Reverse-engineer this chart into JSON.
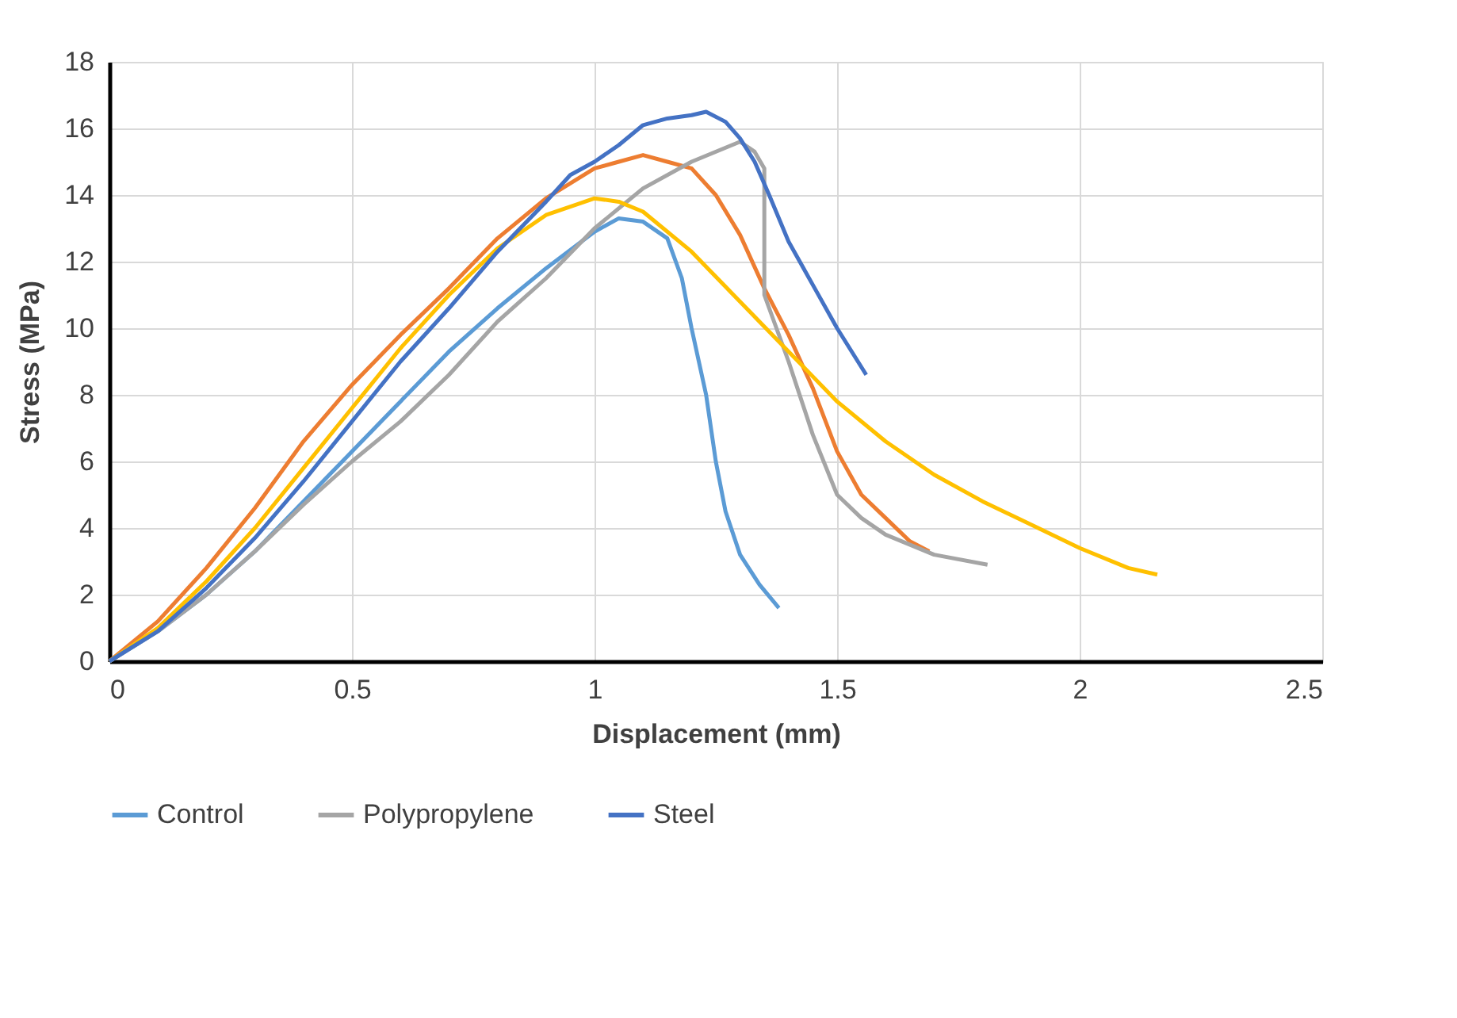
{
  "chart_data": {
    "type": "line",
    "xlabel": "Displacement (mm)",
    "ylabel": "Stress (MPa)",
    "xlim": [
      0,
      2.5
    ],
    "xticks": [
      0,
      0.5,
      1,
      1.5,
      2,
      2.5
    ],
    "ylim": [
      0,
      18
    ],
    "yticks": [
      0,
      2,
      4,
      6,
      8,
      10,
      12,
      14,
      16,
      18
    ],
    "grid": true,
    "legend": "bottom",
    "marker": "none",
    "line_style": "solid",
    "series": [
      {
        "name": "Control",
        "color": "#5b9bd5",
        "x": [
          0,
          0.1,
          0.2,
          0.3,
          0.4,
          0.5,
          0.6,
          0.7,
          0.8,
          0.9,
          1.0,
          1.05,
          1.1,
          1.15,
          1.18,
          1.2,
          1.23,
          1.25,
          1.27,
          1.3,
          1.34,
          1.38
        ],
        "values": [
          0,
          0.9,
          2.0,
          3.3,
          4.8,
          6.3,
          7.8,
          9.3,
          10.6,
          11.8,
          12.9,
          13.3,
          13.2,
          12.7,
          11.5,
          10.0,
          8.0,
          6.0,
          4.5,
          3.2,
          2.3,
          1.6
        ]
      },
      {
        "color": "#ed7d31",
        "x": [
          0,
          0.1,
          0.2,
          0.3,
          0.4,
          0.5,
          0.6,
          0.7,
          0.8,
          0.9,
          1.0,
          1.05,
          1.1,
          1.15,
          1.2,
          1.25,
          1.3,
          1.35,
          1.4,
          1.45,
          1.5,
          1.55,
          1.6,
          1.65,
          1.69
        ],
        "values": [
          0,
          1.2,
          2.8,
          4.6,
          6.6,
          8.3,
          9.8,
          11.2,
          12.7,
          13.9,
          14.8,
          15.0,
          15.2,
          15.0,
          14.8,
          14.0,
          12.8,
          11.2,
          9.8,
          8.2,
          6.3,
          5.0,
          4.3,
          3.6,
          3.3
        ]
      },
      {
        "name": "Polypropylene",
        "color": "#a5a5a5",
        "x": [
          0,
          0.1,
          0.2,
          0.3,
          0.4,
          0.5,
          0.6,
          0.7,
          0.8,
          0.9,
          1.0,
          1.1,
          1.2,
          1.3,
          1.33,
          1.35,
          1.35,
          1.4,
          1.45,
          1.5,
          1.55,
          1.6,
          1.7,
          1.81
        ],
        "values": [
          0,
          0.9,
          2.0,
          3.3,
          4.7,
          6.0,
          7.2,
          8.6,
          10.2,
          11.5,
          13.0,
          14.2,
          15.0,
          15.6,
          15.3,
          14.8,
          11.0,
          9.0,
          6.8,
          5.0,
          4.3,
          3.8,
          3.2,
          2.9
        ]
      },
      {
        "color": "#ffc000",
        "x": [
          0,
          0.1,
          0.2,
          0.3,
          0.4,
          0.5,
          0.6,
          0.7,
          0.8,
          0.9,
          1.0,
          1.05,
          1.1,
          1.2,
          1.3,
          1.4,
          1.5,
          1.6,
          1.7,
          1.8,
          1.9,
          2.0,
          2.1,
          2.16
        ],
        "values": [
          0,
          1.0,
          2.4,
          4.0,
          5.8,
          7.6,
          9.4,
          11.0,
          12.4,
          13.4,
          13.9,
          13.8,
          13.5,
          12.3,
          10.8,
          9.3,
          7.8,
          6.6,
          5.6,
          4.8,
          4.1,
          3.4,
          2.8,
          2.6
        ]
      },
      {
        "name": "Steel",
        "color": "#4472c4",
        "x": [
          0,
          0.1,
          0.2,
          0.3,
          0.4,
          0.5,
          0.6,
          0.7,
          0.8,
          0.9,
          0.95,
          1.0,
          1.05,
          1.1,
          1.15,
          1.2,
          1.23,
          1.27,
          1.3,
          1.33,
          1.36,
          1.4,
          1.45,
          1.5,
          1.56
        ],
        "values": [
          0,
          0.9,
          2.2,
          3.7,
          5.4,
          7.2,
          9.0,
          10.6,
          12.3,
          13.8,
          14.6,
          15.0,
          15.5,
          16.1,
          16.3,
          16.4,
          16.5,
          16.2,
          15.7,
          15.0,
          14.0,
          12.6,
          11.3,
          10.0,
          8.6
        ]
      }
    ]
  }
}
